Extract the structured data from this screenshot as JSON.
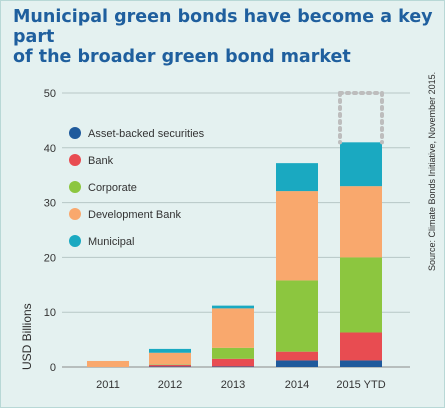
{
  "title_lines": [
    "Municipal green bonds have become a key part",
    "of the broader green bond market"
  ],
  "source": "Source: Climate Bonds Initiative, November 2015.",
  "chart_data": {
    "type": "bar",
    "stacked": true,
    "categories": [
      "2011",
      "2012",
      "2013",
      "2014",
      "2015 YTD"
    ],
    "series": [
      {
        "name": "Asset-backed securities",
        "color": "#1f5a9c",
        "values": [
          0,
          0.1,
          0.1,
          1.2,
          1.2
        ]
      },
      {
        "name": "Bank",
        "color": "#e84c51",
        "values": [
          0,
          0.3,
          1.4,
          1.6,
          5.1
        ]
      },
      {
        "name": "Corporate",
        "color": "#8cc63f",
        "values": [
          0,
          0.1,
          2.0,
          13.0,
          13.7
        ]
      },
      {
        "name": "Development Bank",
        "color": "#f9a86d",
        "values": [
          1.1,
          2.1,
          7.2,
          16.3,
          13.0
        ]
      },
      {
        "name": "Municipal",
        "color": "#1aa9c1",
        "values": [
          0,
          0.7,
          0.5,
          5.1,
          8.0
        ]
      }
    ],
    "projected_total": {
      "category": "2015 YTD",
      "value": 50,
      "style": "dotted-outline",
      "color": "#bdbdbd"
    },
    "ylabel": "USD Billions",
    "xlabel": "",
    "ylim": [
      0,
      50
    ],
    "yticks": [
      0,
      10,
      20,
      30,
      40,
      50
    ],
    "grid": true,
    "legend_position": "top-left"
  }
}
